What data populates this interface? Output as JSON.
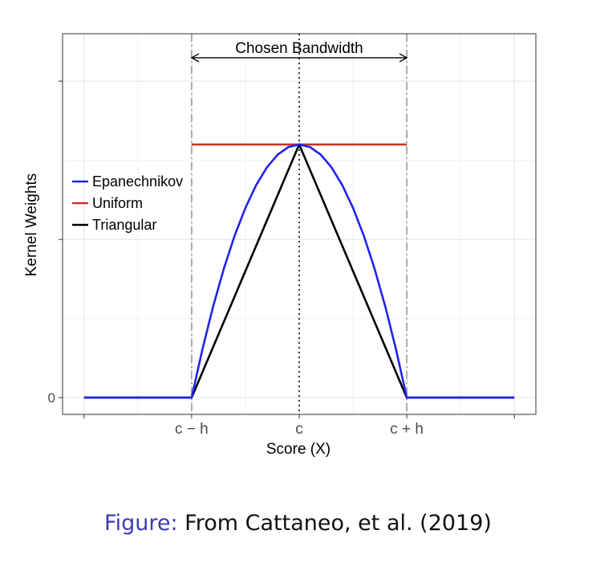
{
  "chart_data": {
    "type": "line",
    "title": "",
    "xlabel": "Score (X)",
    "ylabel": "Kernel Weights",
    "xlim": [
      -2.2,
      2.2
    ],
    "ylim": [
      -0.053,
      1.15
    ],
    "x_ticks": [
      -2,
      -1,
      0,
      1,
      2
    ],
    "x_tick_labels": [
      "",
      "c − h",
      "c",
      "c + h",
      ""
    ],
    "y_ticks": [
      0,
      0.5,
      1.0
    ],
    "y_tick_labels": [
      "0",
      "",
      ""
    ],
    "grid": true,
    "legend_position": "left",
    "series": [
      {
        "name": "Epanechnikov",
        "color": "#2222ee",
        "x": [
          -2,
          -1,
          -0.9,
          -0.8,
          -0.7,
          -0.6,
          -0.5,
          -0.4,
          -0.3,
          -0.2,
          -0.1,
          0,
          0.1,
          0.2,
          0.3,
          0.4,
          0.5,
          0.6,
          0.7,
          0.8,
          0.9,
          1,
          2
        ],
        "y": [
          0,
          0,
          0.152,
          0.288,
          0.408,
          0.512,
          0.6,
          0.672,
          0.728,
          0.768,
          0.792,
          0.8,
          0.792,
          0.768,
          0.728,
          0.672,
          0.6,
          0.512,
          0.408,
          0.288,
          0.152,
          0,
          0
        ]
      },
      {
        "name": "Uniform",
        "color": "#cc3322",
        "x": [
          -1,
          1
        ],
        "y": [
          0.8,
          0.8
        ]
      },
      {
        "name": "Triangular",
        "color": "#000000",
        "x": [
          -2,
          -1,
          0,
          1,
          2
        ],
        "y": [
          0,
          0,
          0.8,
          0,
          0
        ]
      }
    ],
    "vertical_lines": [
      {
        "x": -1,
        "style": "dashdot",
        "color": "#aaaaaa"
      },
      {
        "x": 0,
        "style": "dotted",
        "color": "#000000"
      },
      {
        "x": 1,
        "style": "dashdot",
        "color": "#aaaaaa"
      }
    ],
    "annotation": {
      "text": "Chosen Bandwidth",
      "from": -1,
      "to": 1,
      "y": 1.074
    }
  },
  "caption": {
    "label": "Figure:",
    "text": " From Cattaneo, et al. (2019)"
  }
}
